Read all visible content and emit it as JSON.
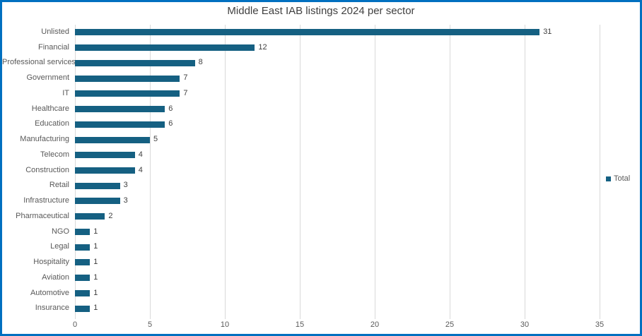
{
  "frame": {
    "border_color": "#0070C0",
    "background_color": "#FFFFFF"
  },
  "chart_data": {
    "type": "bar",
    "orientation": "horizontal",
    "title": "Middle East IAB listings 2024 per sector",
    "categories": [
      "Unlisted",
      "Financial",
      "Professional services",
      "Government",
      "IT",
      "Healthcare",
      "Education",
      "Manufacturing",
      "Telecom",
      "Construction",
      "Retail",
      "Infrastructure",
      "Pharmaceutical",
      "NGO",
      "Legal",
      "Hospitality",
      "Aviation",
      "Automotive",
      "Insurance"
    ],
    "series": [
      {
        "name": "Total",
        "values": [
          31,
          12,
          8,
          7,
          7,
          6,
          6,
          5,
          4,
          4,
          3,
          3,
          2,
          1,
          1,
          1,
          1,
          1,
          1
        ]
      }
    ],
    "data_labels_shown": true,
    "xlabel": "",
    "ylabel": "",
    "xlim": [
      0,
      35
    ],
    "x_ticks": [
      0,
      5,
      10,
      15,
      20,
      25,
      30,
      35
    ],
    "grid": "vertical",
    "legend": {
      "position": "right",
      "entries": [
        "Total"
      ]
    },
    "colors": {
      "bar": "#156082",
      "title": "#404040",
      "category_label": "#595959",
      "tick_label": "#595959",
      "data_label": "#404040",
      "gridline": "#D9D9D9"
    }
  }
}
